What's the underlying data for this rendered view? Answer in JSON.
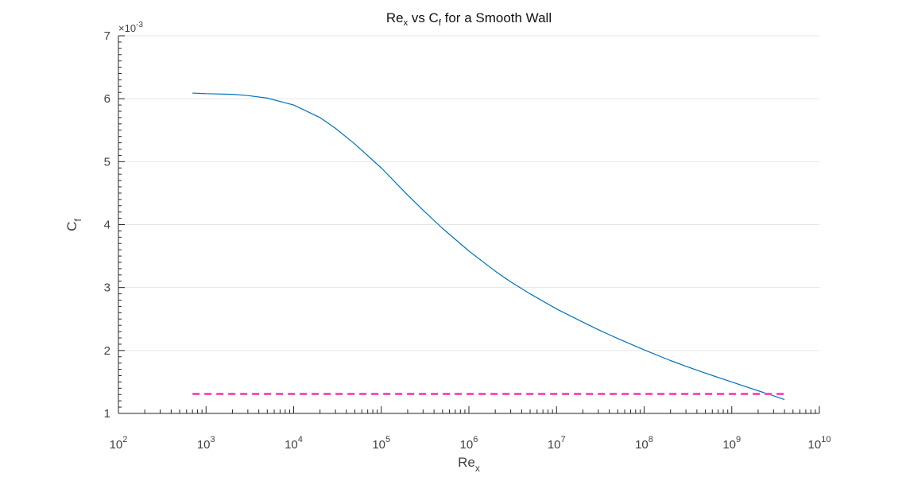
{
  "chart_data": {
    "type": "line",
    "title": {
      "main": "Re",
      "main_sub": "x",
      "middle": " vs C",
      "middle_sub": "f",
      "tail": " for a Smooth Wall"
    },
    "xlabel": {
      "main": "Re",
      "sub": "x"
    },
    "ylabel": {
      "main": "C",
      "sub": "f"
    },
    "x_scale": "log",
    "xlim": [
      100,
      10000000000
    ],
    "ylim": [
      0.001,
      0.007
    ],
    "y_exponent_label": "×10",
    "y_exponent_power": "-3",
    "grid": {
      "x": false,
      "y": true
    },
    "x_ticks": [
      {
        "base": "10",
        "power": "2"
      },
      {
        "base": "10",
        "power": "3"
      },
      {
        "base": "10",
        "power": "4"
      },
      {
        "base": "10",
        "power": "5"
      },
      {
        "base": "10",
        "power": "6"
      },
      {
        "base": "10",
        "power": "7"
      },
      {
        "base": "10",
        "power": "8"
      },
      {
        "base": "10",
        "power": "9"
      },
      {
        "base": "10",
        "power": "10"
      }
    ],
    "y_ticks": [
      "1",
      "2",
      "3",
      "4",
      "5",
      "6",
      "7"
    ],
    "series": [
      {
        "x": [
          700,
          1000,
          2000,
          3000,
          5000,
          10000,
          20000,
          30000,
          50000,
          100000,
          200000,
          300000,
          500000,
          1000000,
          2000000,
          3000000,
          5000000,
          10000000,
          20000000,
          30000000,
          50000000,
          100000000,
          200000000,
          300000000,
          500000000,
          1000000000,
          2000000000,
          3000000000,
          4000000000
        ],
        "y": [
          0.00609,
          0.00608,
          0.00607,
          0.00605,
          0.00601,
          0.0059,
          0.0057,
          0.00553,
          0.00528,
          0.0049,
          0.00447,
          0.00423,
          0.00394,
          0.00358,
          0.00326,
          0.00309,
          0.0029,
          0.00266,
          0.00245,
          0.00233,
          0.00219,
          0.00201,
          0.00184,
          0.00175,
          0.00164,
          0.0015,
          0.00136,
          0.00128,
          0.00122
        ],
        "color": "#0072bd",
        "style": "solid"
      },
      {
        "x": [
          700,
          4000000000
        ],
        "y": [
          0.00131,
          0.00131
        ],
        "color": "#ff50b4",
        "style": "dashed"
      }
    ]
  }
}
